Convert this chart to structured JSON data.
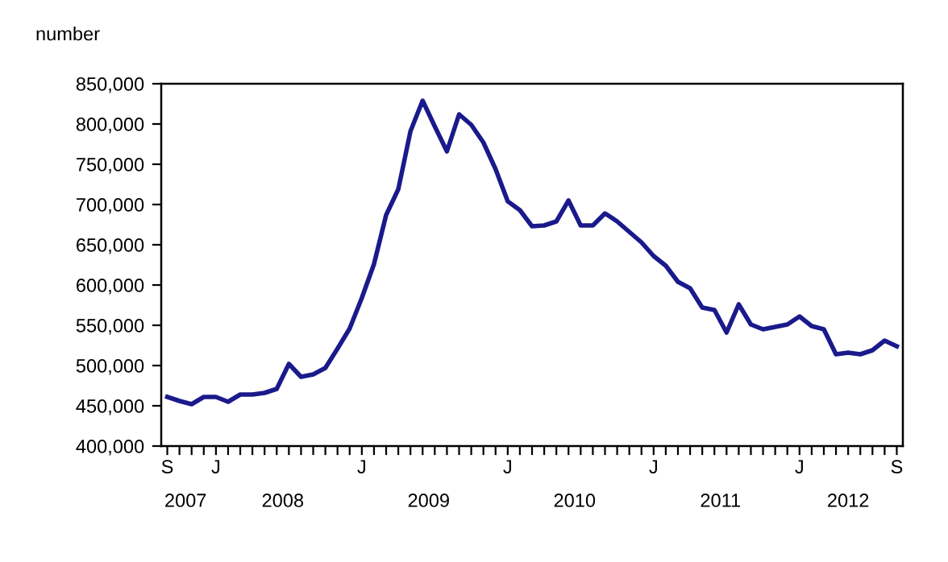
{
  "chart_data": {
    "type": "line",
    "ylabel": "number",
    "categories": [
      "S",
      null,
      null,
      null,
      "J",
      null,
      null,
      null,
      null,
      null,
      null,
      null,
      null,
      null,
      null,
      null,
      "J",
      null,
      null,
      null,
      null,
      null,
      null,
      null,
      null,
      null,
      null,
      null,
      "J",
      null,
      null,
      null,
      null,
      null,
      null,
      null,
      null,
      null,
      null,
      null,
      "J",
      null,
      null,
      null,
      null,
      null,
      null,
      null,
      null,
      null,
      null,
      null,
      "J",
      null,
      null,
      null,
      null,
      null,
      null,
      null,
      "S"
    ],
    "series": [
      {
        "color": "#1a1a8c",
        "values": [
          461000,
          456000,
          452000,
          461000,
          461000,
          455000,
          464000,
          464000,
          466000,
          471000,
          502000,
          486000,
          489000,
          497000,
          521000,
          546000,
          584000,
          626000,
          687000,
          719000,
          791000,
          829000,
          797000,
          766000,
          812000,
          799000,
          777000,
          744000,
          704000,
          693000,
          673000,
          674000,
          679000,
          705000,
          674000,
          674000,
          689000,
          679000,
          666000,
          653000,
          636000,
          624000,
          604000,
          596000,
          572000,
          569000,
          541000,
          576000,
          551000,
          545000,
          548000,
          551000,
          561000,
          549000,
          545000,
          514000,
          516000,
          514000,
          519000,
          531000,
          524000
        ]
      }
    ],
    "ylim": [
      400000,
      850000
    ],
    "yticks": [
      {
        "value": 400000,
        "label": "400,000"
      },
      {
        "value": 450000,
        "label": "450,000"
      },
      {
        "value": 500000,
        "label": "500,000"
      },
      {
        "value": 550000,
        "label": "550,000"
      },
      {
        "value": 600000,
        "label": "600,000"
      },
      {
        "value": 650000,
        "label": "650,000"
      },
      {
        "value": 700000,
        "label": "700,000"
      },
      {
        "value": 750000,
        "label": "750,000"
      },
      {
        "value": 800000,
        "label": "800,000"
      },
      {
        "value": 850000,
        "label": "850,000"
      }
    ],
    "annotations": [
      "2007",
      "2008",
      "2009",
      "2010",
      "2011",
      "2012"
    ],
    "grid": false,
    "legend": false,
    "marker": "none",
    "line_style": "solid"
  }
}
